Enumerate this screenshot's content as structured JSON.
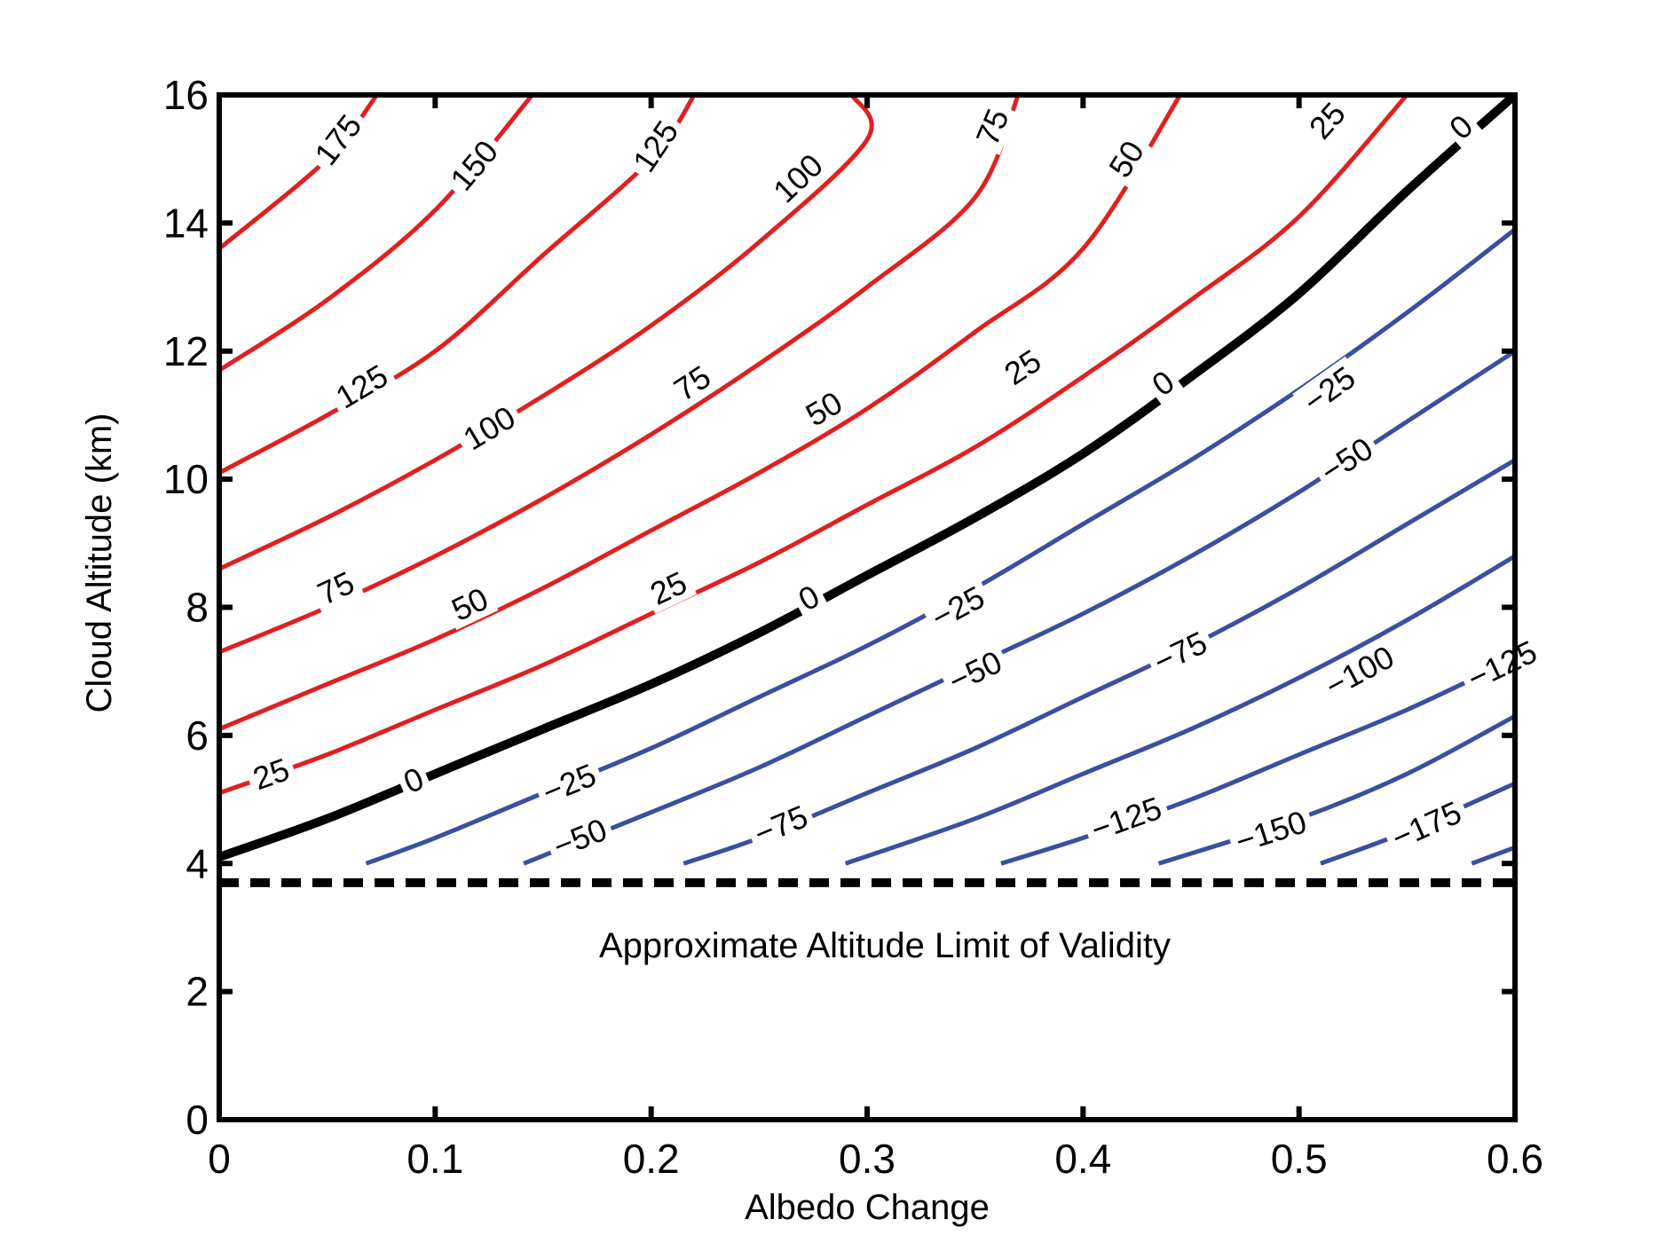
{
  "chart_data": {
    "type": "contour",
    "title": "",
    "xlabel": "Albedo Change",
    "ylabel": "Cloud Altitude (km)",
    "xlim": [
      0,
      0.6
    ],
    "ylim": [
      0,
      16
    ],
    "xticks": [
      0,
      0.1,
      0.2,
      0.3,
      0.4,
      0.5,
      0.6
    ],
    "xtick_labels": [
      "0",
      "0.1",
      "0.2",
      "0.3",
      "0.4",
      "0.5",
      "0.6"
    ],
    "yticks": [
      0,
      2,
      4,
      6,
      8,
      10,
      12,
      14,
      16
    ],
    "ytick_labels": [
      "0",
      "2",
      "4",
      "6",
      "8",
      "10",
      "12",
      "14",
      "16"
    ],
    "grid": false,
    "colors": {
      "positive": "#e02020",
      "zero": "#000000",
      "negative": "#3a4fa0",
      "limit_line": "#000000"
    },
    "validity_limit": {
      "y": 3.7,
      "style": "dashed",
      "label": "Approximate Altitude Limit of Validity"
    },
    "contours": [
      {
        "level": 175,
        "points": [
          [
            0,
            13.6
          ],
          [
            0.05,
            15.0
          ],
          [
            0.073,
            16
          ]
        ],
        "labels": [
          {
            "text": "175",
            "x": 0.055,
            "y": 15.3
          }
        ]
      },
      {
        "level": 150,
        "points": [
          [
            0,
            11.7
          ],
          [
            0.05,
            12.8
          ],
          [
            0.1,
            14.2
          ],
          [
            0.145,
            16
          ]
        ],
        "labels": [
          {
            "text": "150",
            "x": 0.118,
            "y": 14.9
          }
        ]
      },
      {
        "level": 125,
        "points": [
          [
            0,
            10.1
          ],
          [
            0.05,
            11.0
          ],
          [
            0.1,
            12.0
          ],
          [
            0.15,
            13.5
          ],
          [
            0.2,
            15.0
          ],
          [
            0.22,
            16
          ]
        ],
        "labels": [
          {
            "text": "125",
            "x": 0.066,
            "y": 11.45
          },
          {
            "text": "125",
            "x": 0.202,
            "y": 15.2
          }
        ]
      },
      {
        "level": 100,
        "points": [
          [
            0,
            8.6
          ],
          [
            0.05,
            9.4
          ],
          [
            0.1,
            10.3
          ],
          [
            0.15,
            11.3
          ],
          [
            0.2,
            12.4
          ],
          [
            0.25,
            13.7
          ],
          [
            0.3,
            15.3
          ],
          [
            0.293,
            16
          ]
        ],
        "labels": [
          {
            "text": "100",
            "x": 0.125,
            "y": 10.8
          },
          {
            "text": "100",
            "x": 0.268,
            "y": 14.7
          }
        ]
      },
      {
        "level": 75,
        "points": [
          [
            0,
            7.3
          ],
          [
            0.05,
            8.0
          ],
          [
            0.1,
            8.8
          ],
          [
            0.15,
            9.7
          ],
          [
            0.2,
            10.7
          ],
          [
            0.25,
            11.8
          ],
          [
            0.3,
            13.0
          ],
          [
            0.35,
            14.4
          ],
          [
            0.37,
            16
          ]
        ],
        "labels": [
          {
            "text": "75",
            "x": 0.054,
            "y": 8.3
          },
          {
            "text": "75",
            "x": 0.219,
            "y": 11.5
          },
          {
            "text": "75",
            "x": 0.358,
            "y": 15.5
          }
        ]
      },
      {
        "level": 50,
        "points": [
          [
            0,
            6.1
          ],
          [
            0.05,
            6.8
          ],
          [
            0.1,
            7.5
          ],
          [
            0.15,
            8.3
          ],
          [
            0.2,
            9.2
          ],
          [
            0.25,
            10.1
          ],
          [
            0.3,
            11.1
          ],
          [
            0.35,
            12.3
          ],
          [
            0.4,
            13.6
          ],
          [
            0.445,
            16
          ]
        ],
        "labels": [
          {
            "text": "50",
            "x": 0.116,
            "y": 8.05
          },
          {
            "text": "50",
            "x": 0.28,
            "y": 11.1
          },
          {
            "text": "50",
            "x": 0.42,
            "y": 15.0
          }
        ]
      },
      {
        "level": 25,
        "points": [
          [
            0,
            5.1
          ],
          [
            0.05,
            5.7
          ],
          [
            0.1,
            6.4
          ],
          [
            0.15,
            7.1
          ],
          [
            0.2,
            7.9
          ],
          [
            0.25,
            8.7
          ],
          [
            0.3,
            9.6
          ],
          [
            0.35,
            10.5
          ],
          [
            0.4,
            11.6
          ],
          [
            0.45,
            12.8
          ],
          [
            0.5,
            14.1
          ],
          [
            0.55,
            16
          ]
        ],
        "labels": [
          {
            "text": "25",
            "x": 0.024,
            "y": 5.4
          },
          {
            "text": "25",
            "x": 0.208,
            "y": 8.3
          },
          {
            "text": "25",
            "x": 0.372,
            "y": 11.75
          },
          {
            "text": "25",
            "x": 0.513,
            "y": 15.6
          }
        ]
      },
      {
        "level": 0,
        "points": [
          [
            0,
            4.1
          ],
          [
            0.05,
            4.7
          ],
          [
            0.1,
            5.4
          ],
          [
            0.15,
            6.1
          ],
          [
            0.2,
            6.8
          ],
          [
            0.25,
            7.6
          ],
          [
            0.3,
            8.5
          ],
          [
            0.35,
            9.4
          ],
          [
            0.4,
            10.4
          ],
          [
            0.45,
            11.6
          ],
          [
            0.5,
            12.9
          ],
          [
            0.55,
            14.5
          ],
          [
            0.6,
            16
          ]
        ],
        "labels": [
          {
            "text": "0",
            "x": 0.09,
            "y": 5.3
          },
          {
            "text": "0",
            "x": 0.273,
            "y": 8.15
          },
          {
            "text": "0",
            "x": 0.437,
            "y": 11.5
          },
          {
            "text": "0",
            "x": 0.575,
            "y": 15.5
          }
        ]
      },
      {
        "level": -25,
        "points": [
          [
            0.068,
            4.0
          ],
          [
            0.1,
            4.4
          ],
          [
            0.15,
            5.1
          ],
          [
            0.2,
            5.8
          ],
          [
            0.25,
            6.6
          ],
          [
            0.3,
            7.4
          ],
          [
            0.35,
            8.3
          ],
          [
            0.4,
            9.3
          ],
          [
            0.45,
            10.3
          ],
          [
            0.5,
            11.4
          ],
          [
            0.55,
            12.6
          ],
          [
            0.6,
            13.9
          ]
        ],
        "labels": [
          {
            "text": "−25",
            "x": 0.162,
            "y": 5.25
          },
          {
            "text": "−25",
            "x": 0.342,
            "y": 8.0
          },
          {
            "text": "−25",
            "x": 0.514,
            "y": 11.4
          }
        ]
      },
      {
        "level": -50,
        "points": [
          [
            0.141,
            4.0
          ],
          [
            0.2,
            4.8
          ],
          [
            0.25,
            5.5
          ],
          [
            0.3,
            6.3
          ],
          [
            0.35,
            7.1
          ],
          [
            0.4,
            7.9
          ],
          [
            0.45,
            8.8
          ],
          [
            0.5,
            9.8
          ],
          [
            0.55,
            10.9
          ],
          [
            0.6,
            12.0
          ]
        ],
        "labels": [
          {
            "text": "−50",
            "x": 0.167,
            "y": 4.4
          },
          {
            "text": "−50",
            "x": 0.35,
            "y": 7.0
          },
          {
            "text": "−50",
            "x": 0.522,
            "y": 10.3
          }
        ]
      },
      {
        "level": -75,
        "points": [
          [
            0.215,
            4.0
          ],
          [
            0.25,
            4.4
          ],
          [
            0.3,
            5.1
          ],
          [
            0.35,
            5.8
          ],
          [
            0.4,
            6.6
          ],
          [
            0.45,
            7.4
          ],
          [
            0.5,
            8.3
          ],
          [
            0.55,
            9.3
          ],
          [
            0.6,
            10.3
          ]
        ],
        "labels": [
          {
            "text": "−75",
            "x": 0.26,
            "y": 4.6
          },
          {
            "text": "−75",
            "x": 0.445,
            "y": 7.3
          }
        ]
      },
      {
        "level": -100,
        "points": [
          [
            0.29,
            4.0
          ],
          [
            0.35,
            4.7
          ],
          [
            0.4,
            5.4
          ],
          [
            0.45,
            6.1
          ],
          [
            0.5,
            6.9
          ],
          [
            0.55,
            7.8
          ],
          [
            0.6,
            8.8
          ]
        ],
        "labels": [
          {
            "text": "−100",
            "x": 0.528,
            "y": 7.0
          }
        ]
      },
      {
        "level": -125,
        "points": [
          [
            0.362,
            4.0
          ],
          [
            0.4,
            4.4
          ],
          [
            0.45,
            5.0
          ],
          [
            0.5,
            5.7
          ],
          [
            0.55,
            6.4
          ],
          [
            0.6,
            7.2
          ]
        ],
        "labels": [
          {
            "text": "−125",
            "x": 0.42,
            "y": 4.7
          },
          {
            "text": "−125",
            "x": 0.594,
            "y": 7.1
          }
        ]
      },
      {
        "level": -150,
        "points": [
          [
            0.435,
            4.0
          ],
          [
            0.5,
            4.7
          ],
          [
            0.55,
            5.4
          ],
          [
            0.6,
            6.3
          ]
        ],
        "labels": [
          {
            "text": "−150",
            "x": 0.487,
            "y": 4.5
          }
        ]
      },
      {
        "level": -175,
        "points": [
          [
            0.51,
            4.0
          ],
          [
            0.55,
            4.5
          ],
          [
            0.6,
            5.25
          ]
        ],
        "labels": [
          {
            "text": "−175",
            "x": 0.559,
            "y": 4.6
          }
        ]
      },
      {
        "level": -200,
        "points": [
          [
            0.58,
            4.0
          ],
          [
            0.6,
            4.25
          ]
        ],
        "labels": []
      }
    ]
  }
}
